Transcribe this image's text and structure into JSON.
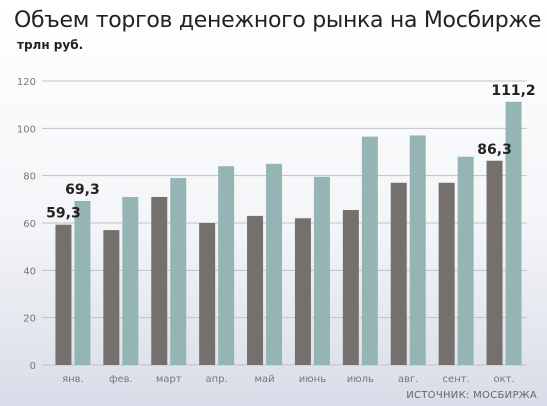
{
  "colors": {
    "series_dark": "#75706b",
    "series_light": "#95b5b5",
    "grid": "#bfc2c7",
    "tick_text": "#777777",
    "label_text": "#222222"
  },
  "chart_data": {
    "type": "bar",
    "title": "Объем торгов денежного рынка на Мосбирже",
    "ylabel": "трлн руб.",
    "source": "ИСТОЧНИК: МОСБИРЖА",
    "categories": [
      "янв.",
      "фев.",
      "март",
      "апр.",
      "май",
      "июнь",
      "июль",
      "авг.",
      "сент.",
      "окт."
    ],
    "series": [
      {
        "values": [
          59.3,
          57,
          71,
          60,
          63,
          62,
          65.5,
          77,
          77,
          86.3
        ]
      },
      {
        "values": [
          69.3,
          71,
          79,
          84,
          85,
          79.5,
          96.5,
          97,
          88,
          111.2
        ]
      }
    ],
    "data_labels": [
      {
        "series": 0,
        "index": 0,
        "text": "59,3"
      },
      {
        "series": 1,
        "index": 0,
        "text": "69,3"
      },
      {
        "series": 0,
        "index": 9,
        "text": "86,3"
      },
      {
        "series": 1,
        "index": 9,
        "text": "111,2"
      }
    ],
    "ylim": [
      0,
      120
    ],
    "yticks": [
      0,
      20,
      40,
      60,
      80,
      100,
      120
    ],
    "grid": true,
    "legend": "none"
  }
}
